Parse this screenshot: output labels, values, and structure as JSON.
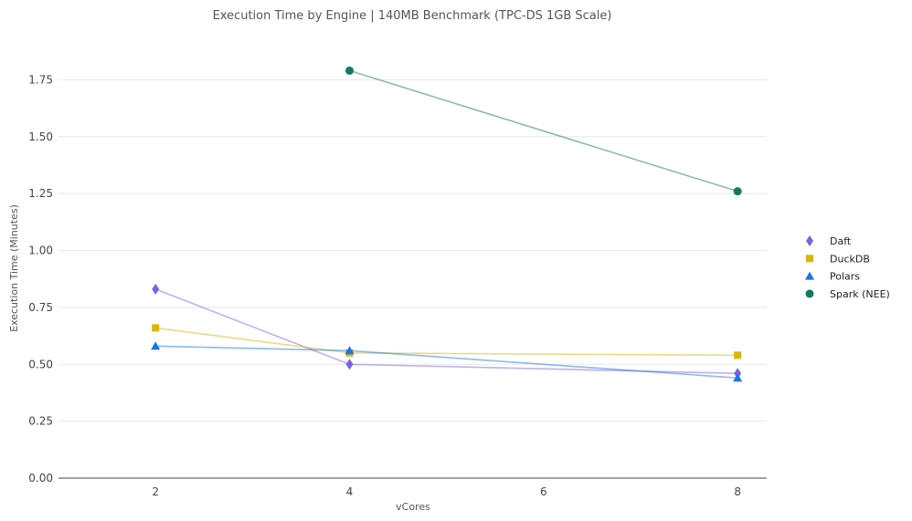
{
  "chart_data": {
    "type": "line",
    "title": "Execution Time by Engine | 140MB Benchmark (TPC-DS 1GB Scale)",
    "xlabel": "vCores",
    "ylabel": "Execution Time (Minutes)",
    "xlim": [
      1,
      8.3
    ],
    "ylim": [
      0,
      1.94
    ],
    "xticks": [
      2,
      4,
      6,
      8
    ],
    "yticks": [
      0.0,
      0.25,
      0.5,
      0.75,
      1.0,
      1.25,
      1.5,
      1.75
    ],
    "xtick_labels": [
      "2",
      "4",
      "6",
      "8"
    ],
    "ytick_labels": [
      "0.00",
      "0.25",
      "0.50",
      "0.75",
      "1.00",
      "1.25",
      "1.50",
      "1.75"
    ],
    "grid": true,
    "legend_position": "right",
    "series": [
      {
        "name": "Daft",
        "marker": "diamond",
        "color": "#7b61e8",
        "x": [
          2,
          4,
          8
        ],
        "values": [
          0.83,
          0.5,
          0.46
        ]
      },
      {
        "name": "DuckDB",
        "marker": "square",
        "color": "#d9b40b",
        "x": [
          2,
          4,
          8
        ],
        "values": [
          0.66,
          0.55,
          0.54
        ]
      },
      {
        "name": "Polars",
        "marker": "triangle",
        "color": "#1a73e8",
        "x": [
          2,
          4,
          8
        ],
        "values": [
          0.58,
          0.56,
          0.44
        ]
      },
      {
        "name": "Spark (NEE)",
        "marker": "circle",
        "color": "#117a65",
        "x": [
          4,
          8
        ],
        "values": [
          1.79,
          1.26
        ]
      }
    ]
  }
}
